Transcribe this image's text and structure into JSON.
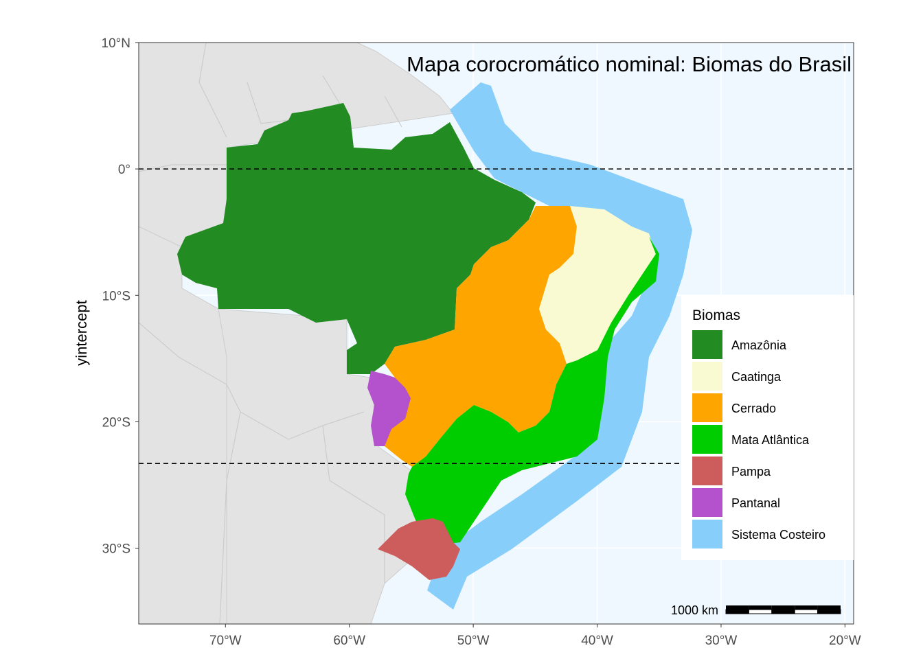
{
  "chart_data": {
    "type": "map",
    "title": "Mapa corocromático nominal: Biomas do Brasil",
    "ylabel": "yintercept",
    "xlabel": "",
    "xlim": [
      -77,
      -19.3
    ],
    "ylim": [
      -36,
      10
    ],
    "x_ticks": [
      {
        "value": -70,
        "label": "70°W"
      },
      {
        "value": -60,
        "label": "60°W"
      },
      {
        "value": -50,
        "label": "50°W"
      },
      {
        "value": -40,
        "label": "40°W"
      },
      {
        "value": -30,
        "label": "30°W"
      },
      {
        "value": -20,
        "label": "20°W"
      }
    ],
    "y_ticks": [
      {
        "value": 10,
        "label": "10°N"
      },
      {
        "value": 0,
        "label": "0°"
      },
      {
        "value": -10,
        "label": "10°S"
      },
      {
        "value": -20,
        "label": "20°S"
      },
      {
        "value": -30,
        "label": "30°S"
      }
    ],
    "hlines": [
      0,
      -23.3
    ],
    "grid": true,
    "legend": {
      "title": "Biomas",
      "position": "right",
      "entries": [
        {
          "label": "Amazônia",
          "color": "#228B22"
        },
        {
          "label": "Caatinga",
          "color": "#FAFAD2"
        },
        {
          "label": "Cerrado",
          "color": "#FFA500"
        },
        {
          "label": "Mata Atlântica",
          "color": "#00CD00"
        },
        {
          "label": "Pampa",
          "color": "#CD5C5C"
        },
        {
          "label": "Pantanal",
          "color": "#B452CD"
        },
        {
          "label": "Sistema Costeiro",
          "color": "#87CEFA"
        }
      ]
    },
    "scale_bar": {
      "label": "1000 km"
    },
    "colors": {
      "ocean": "#F0F8FF",
      "land": "#E3E3E3",
      "land_border": "#CCCCCC",
      "grid": "#FFFFFF"
    }
  }
}
